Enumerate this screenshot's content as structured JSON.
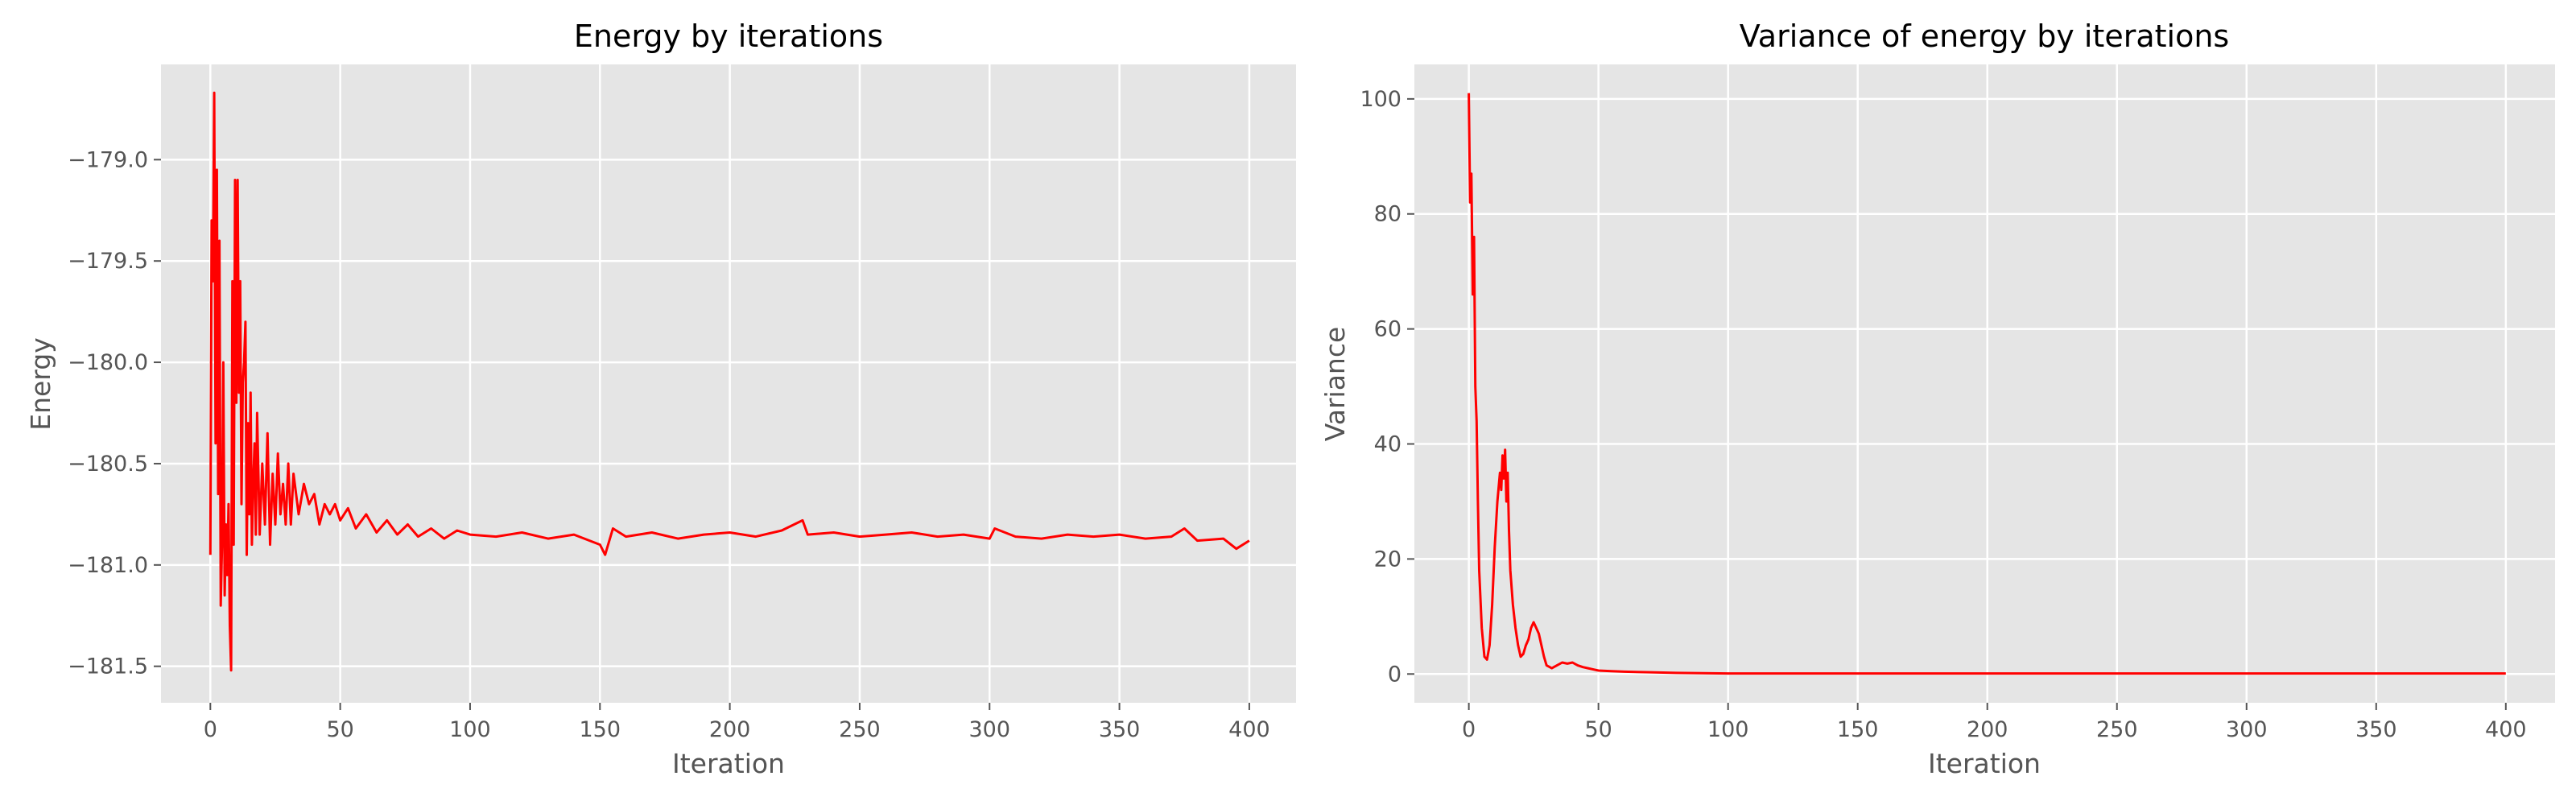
{
  "chart_data": [
    {
      "type": "line",
      "title": "Energy by iterations",
      "xlabel": "Iteration",
      "ylabel": "Energy",
      "xlim": [
        -19,
        418
      ],
      "ylim": [
        -181.68,
        -178.53
      ],
      "xticks": [
        0,
        50,
        100,
        150,
        200,
        250,
        300,
        350,
        400
      ],
      "xtick_labels": [
        "0",
        "50",
        "100",
        "150",
        "200",
        "250",
        "300",
        "350",
        "400"
      ],
      "yticks": [
        -181.5,
        -181.0,
        -180.5,
        -180.0,
        -179.5,
        -179.0
      ],
      "ytick_labels": [
        "−181.5",
        "−181.0",
        "−180.5",
        "−180.0",
        "−179.5",
        "−179.0"
      ],
      "grid": true,
      "series": [
        {
          "name": "Energy",
          "color": "#ff0000",
          "x": [
            0,
            0.5,
            1,
            1.5,
            2,
            2.5,
            3,
            3.5,
            4,
            4.5,
            5,
            5.5,
            6,
            6.5,
            7,
            7.5,
            8,
            8.5,
            9,
            9.5,
            10,
            10.5,
            11,
            11.5,
            12,
            12.5,
            13,
            13.5,
            14,
            14.5,
            15,
            15.5,
            16,
            16.5,
            17,
            17.5,
            18,
            19,
            20,
            21,
            22,
            23,
            24,
            25,
            26,
            27,
            28,
            29,
            30,
            31,
            32,
            34,
            36,
            38,
            40,
            42,
            44,
            46,
            48,
            50,
            53,
            56,
            60,
            64,
            68,
            72,
            76,
            80,
            85,
            90,
            95,
            100,
            110,
            120,
            130,
            140,
            150,
            152,
            155,
            160,
            170,
            180,
            190,
            200,
            210,
            220,
            228,
            230,
            240,
            250,
            260,
            270,
            280,
            290,
            300,
            302,
            310,
            320,
            330,
            340,
            350,
            360,
            370,
            375,
            380,
            390,
            395,
            400
          ],
          "values": [
            -180.95,
            -179.3,
            -179.6,
            -178.67,
            -180.4,
            -179.05,
            -180.65,
            -179.4,
            -181.2,
            -180.9,
            -180.0,
            -181.15,
            -180.8,
            -181.05,
            -180.7,
            -181.3,
            -181.52,
            -179.6,
            -180.9,
            -179.1,
            -180.2,
            -179.1,
            -180.15,
            -179.6,
            -180.7,
            -180.1,
            -180.0,
            -179.8,
            -180.95,
            -180.3,
            -180.75,
            -180.15,
            -180.9,
            -180.6,
            -180.4,
            -180.85,
            -180.25,
            -180.85,
            -180.5,
            -180.8,
            -180.35,
            -180.9,
            -180.55,
            -180.8,
            -180.45,
            -180.75,
            -180.6,
            -180.8,
            -180.5,
            -180.8,
            -180.55,
            -180.75,
            -180.6,
            -180.7,
            -180.65,
            -180.8,
            -180.7,
            -180.75,
            -180.7,
            -180.78,
            -180.72,
            -180.82,
            -180.75,
            -180.84,
            -180.78,
            -180.85,
            -180.8,
            -180.86,
            -180.82,
            -180.87,
            -180.83,
            -180.85,
            -180.86,
            -180.84,
            -180.87,
            -180.85,
            -180.9,
            -180.95,
            -180.82,
            -180.86,
            -180.84,
            -180.87,
            -180.85,
            -180.84,
            -180.86,
            -180.83,
            -180.78,
            -180.85,
            -180.84,
            -180.86,
            -180.85,
            -180.84,
            -180.86,
            -180.85,
            -180.87,
            -180.82,
            -180.86,
            -180.87,
            -180.85,
            -180.86,
            -180.85,
            -180.87,
            -180.86,
            -180.82,
            -180.88,
            -180.87,
            -180.92,
            -180.88
          ]
        }
      ]
    },
    {
      "type": "line",
      "title": "Variance of energy by iterations",
      "xlabel": "Iteration",
      "ylabel": "Variance",
      "xlim": [
        -21,
        419
      ],
      "ylim": [
        -5,
        106
      ],
      "xticks": [
        0,
        50,
        100,
        150,
        200,
        250,
        300,
        350,
        400
      ],
      "xtick_labels": [
        "0",
        "50",
        "100",
        "150",
        "200",
        "250",
        "300",
        "350",
        "400"
      ],
      "yticks": [
        0,
        20,
        40,
        60,
        80,
        100
      ],
      "ytick_labels": [
        "0",
        "20",
        "40",
        "60",
        "80",
        "100"
      ],
      "grid": true,
      "series": [
        {
          "name": "Variance",
          "color": "#ff0000",
          "x": [
            0,
            0.5,
            1,
            1.5,
            2,
            2.5,
            3,
            3.5,
            4,
            5,
            6,
            7,
            8,
            9,
            10,
            11,
            12,
            12.5,
            13,
            13.5,
            14,
            14.5,
            15,
            15.5,
            16,
            17,
            18,
            19,
            20,
            21,
            22,
            23,
            24,
            25,
            26,
            27,
            28,
            29,
            30,
            32,
            34,
            36,
            38,
            40,
            42,
            44,
            46,
            48,
            50,
            55,
            60,
            70,
            80,
            90,
            100,
            150,
            200,
            250,
            300,
            350,
            400
          ],
          "values": [
            101,
            82,
            87,
            66,
            76,
            50,
            44,
            30,
            18,
            8,
            3,
            2.5,
            5,
            12,
            22,
            30,
            35,
            32,
            38,
            34,
            39,
            30,
            35,
            25,
            18,
            12,
            8,
            5,
            3,
            3.5,
            5,
            6,
            8,
            9,
            8,
            7,
            5,
            3,
            1.5,
            1,
            1.5,
            2,
            1.8,
            2,
            1.5,
            1.2,
            1,
            0.8,
            0.6,
            0.5,
            0.4,
            0.3,
            0.2,
            0.15,
            0.1,
            0.1,
            0.1,
            0.1,
            0.1,
            0.1,
            0.1
          ]
        }
      ]
    }
  ]
}
